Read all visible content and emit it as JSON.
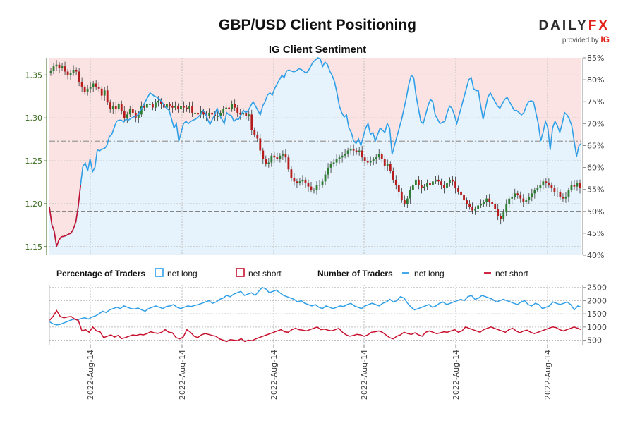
{
  "header": {
    "title": "GBP/USD Client Positioning",
    "subtitle": "IG Client Sentiment",
    "brand_part1": "DAILY",
    "brand_part2": "FX",
    "provided_by": "provided by",
    "provider": "IG"
  },
  "legend": {
    "pct_label": "Percentage of Traders",
    "pct_long": "net long",
    "pct_short": "net short",
    "num_label": "Number of Traders",
    "num_long": "net long",
    "num_short": "net short"
  },
  "colors": {
    "long": "#2f9fe8",
    "short": "#c8102e",
    "long_fill": "#e6f3fc",
    "short_fill": "#fbe3e3",
    "candle_up": "#2e7d32",
    "candle_down": "#b71c1c",
    "axis_left": "#3a6b1f"
  },
  "chart_data": [
    {
      "type": "line",
      "title": "GBP/USD Client Positioning",
      "subtitle": "IG Client Sentiment",
      "x_tick_labels": [
        "2022-Aug-14",
        "2022-Aug-14",
        "2022-Aug-14",
        "2022-Aug-14",
        "2022-Aug-14",
        "2022-Aug-14"
      ],
      "price_axis": {
        "ylim": [
          1.14,
          1.37
        ],
        "ticks": [
          1.15,
          1.2,
          1.25,
          1.3,
          1.35
        ],
        "labels": [
          "1.15",
          "1.20",
          "1.25",
          "1.30",
          "1.35"
        ]
      },
      "percent_axis": {
        "ylim": [
          40,
          85
        ],
        "ticks": [
          40,
          45,
          50,
          55,
          60,
          65,
          70,
          75,
          80,
          85
        ],
        "labels": [
          "40%",
          "45%",
          "50%",
          "55%",
          "60%",
          "65%",
          "70%",
          "75%",
          "80%",
          "85%"
        ]
      },
      "reference_lines": [
        50,
        66
      ],
      "series": [
        {
          "name": "net long %",
          "values": [
            51.0,
            47.0,
            45.5,
            42.0,
            43.5,
            44.2,
            44.3,
            44.5,
            44.8,
            45.0,
            46.0,
            47.5,
            51.0,
            56.0,
            60.3,
            61.0,
            59.2,
            62.0,
            59.0,
            60.0,
            64.0,
            63.8,
            64.2,
            64.3,
            65.0,
            67.0,
            67.5,
            69.0,
            70.5,
            70.8,
            70.8,
            70.4,
            71.0,
            70.8,
            71.2,
            71.5,
            71.7,
            72.0,
            73.0,
            74.0,
            75.0,
            76.0,
            77.0,
            76.6,
            76.2,
            76.0,
            75.5,
            75.0,
            74.0,
            73.5,
            73.0,
            71.0,
            69.0,
            70.0,
            66.0,
            68.0,
            70.0,
            70.5,
            70.0,
            70.5,
            70.8,
            71.0,
            71.5,
            72.0,
            73.0,
            72.5,
            71.0,
            69.8,
            71.0,
            72.0,
            73.5,
            72.0,
            71.0,
            70.0,
            72.5,
            72.0,
            71.8,
            70.5,
            71.0,
            71.0,
            72.0,
            73.0,
            72.5,
            73.0,
            74.0,
            75.0,
            74.0,
            73.0,
            72.0,
            74.0,
            75.0,
            76.5,
            77.0,
            76.5,
            78.0,
            79.0,
            80.0,
            81.0,
            80.5,
            82.0,
            82.2,
            82.0,
            81.8,
            82.0,
            82.5,
            82.4,
            82.0,
            81.5,
            82.0,
            83.0,
            84.0,
            84.5,
            85.0,
            84.8,
            83.0,
            84.0,
            83.5,
            82.0,
            81.0,
            79.5,
            77.0,
            74.0,
            72.5,
            71.5,
            72.0,
            69.0,
            68.0,
            66.0,
            65.5,
            66.5,
            65.0,
            67.0,
            69.0,
            70.0,
            67.5,
            68.0,
            66.0,
            67.5,
            69.0,
            68.5,
            68.0,
            70.0,
            69.0,
            63.0,
            65.0,
            67.0,
            69.0,
            71.0,
            73.5,
            76.0,
            79.0,
            81.0,
            80.5,
            76.5,
            73.5,
            70.5,
            70.0,
            72.0,
            74.0,
            75.5,
            75.0,
            72.0,
            71.0,
            70.0,
            70.3,
            70.5,
            72.5,
            74.0,
            73.5,
            72.0,
            70.0,
            72.0,
            74.0,
            76.0,
            78.0,
            80.0,
            80.5,
            78.0,
            77.5,
            77.5,
            74.0,
            71.0,
            73.5,
            76.0,
            77.0,
            76.0,
            75.0,
            74.0,
            73.5,
            74.5,
            75.5,
            76.0,
            75.0,
            74.0,
            73.0,
            73.0,
            72.5,
            72.0,
            72.5,
            74.0,
            75.0,
            75.2,
            75.0,
            72.5,
            70.0,
            66.0,
            68.0,
            70.5,
            69.0,
            64.0,
            69.0,
            70.5,
            69.5,
            68.0,
            70.0,
            72.5,
            72.0,
            71.0,
            69.5,
            66.0,
            62.5,
            65.0,
            65.5
          ]
        },
        {
          "name": "GBP/USD close",
          "values": [
            1.355,
            1.36,
            1.362,
            1.358,
            1.36,
            1.354,
            1.35,
            1.352,
            1.356,
            1.354,
            1.342,
            1.336,
            1.33,
            1.334,
            1.336,
            1.34,
            1.336,
            1.334,
            1.326,
            1.332,
            1.318,
            1.31,
            1.314,
            1.31,
            1.316,
            1.308,
            1.3,
            1.304,
            1.31,
            1.306,
            1.3,
            1.304,
            1.314,
            1.312,
            1.316,
            1.316,
            1.312,
            1.318,
            1.32,
            1.316,
            1.312,
            1.316,
            1.314,
            1.312,
            1.314,
            1.31,
            1.314,
            1.312,
            1.31,
            1.314,
            1.306,
            1.306,
            1.304,
            1.308,
            1.304,
            1.302,
            1.306,
            1.304,
            1.302,
            1.302,
            1.306,
            1.31,
            1.312,
            1.31,
            1.316,
            1.312,
            1.306,
            1.304,
            1.306,
            1.302,
            1.304,
            1.286,
            1.28,
            1.276,
            1.262,
            1.252,
            1.246,
            1.248,
            1.256,
            1.254,
            1.252,
            1.256,
            1.258,
            1.254,
            1.24,
            1.23,
            1.226,
            1.224,
            1.226,
            1.228,
            1.224,
            1.22,
            1.216,
            1.216,
            1.222,
            1.222,
            1.226,
            1.234,
            1.242,
            1.246,
            1.248,
            1.252,
            1.254,
            1.256,
            1.258,
            1.262,
            1.264,
            1.262,
            1.26,
            1.262,
            1.254,
            1.25,
            1.248,
            1.25,
            1.252,
            1.254,
            1.258,
            1.252,
            1.244,
            1.246,
            1.238,
            1.228,
            1.222,
            1.214,
            1.204,
            1.2,
            1.206,
            1.216,
            1.222,
            1.228,
            1.222,
            1.218,
            1.22,
            1.224,
            1.222,
            1.226,
            1.228,
            1.226,
            1.222,
            1.218,
            1.224,
            1.228,
            1.226,
            1.218,
            1.214,
            1.21,
            1.204,
            1.2,
            1.196,
            1.192,
            1.194,
            1.198,
            1.2,
            1.202,
            1.206,
            1.202,
            1.2,
            1.194,
            1.186,
            1.182,
            1.19,
            1.2,
            1.206,
            1.208,
            1.212,
            1.21,
            1.206,
            1.202,
            1.204,
            1.208,
            1.212,
            1.216,
            1.218,
            1.222,
            1.226,
            1.224,
            1.222,
            1.218,
            1.214,
            1.214,
            1.208,
            1.206,
            1.208,
            1.216,
            1.222,
            1.22,
            1.224,
            1.218
          ]
        }
      ]
    },
    {
      "type": "line",
      "title": "Number of Traders",
      "ylim": [
        300,
        2600
      ],
      "ticks": [
        500,
        1000,
        1500,
        2000,
        2500
      ],
      "tick_labels": [
        "500",
        "1000",
        "1500",
        "2000",
        "2500"
      ],
      "series": [
        {
          "name": "net long",
          "values": [
            1200,
            1120,
            1080,
            1100,
            1150,
            1200,
            1260,
            1300,
            1280,
            1320,
            1350,
            1300,
            1380,
            1420,
            1500,
            1600,
            1550,
            1650,
            1700,
            1750,
            1700,
            1800,
            1750,
            1700,
            1680,
            1720,
            1650,
            1600,
            1700,
            1750,
            1800,
            1750,
            1700,
            1780,
            1800,
            1850,
            1750,
            1700,
            1750,
            1800,
            1780,
            1820,
            1850,
            1900,
            1950,
            2000,
            1900,
            1950,
            2050,
            2100,
            2200,
            2150,
            2250,
            2300,
            2350,
            2200,
            2250,
            2300,
            2200,
            2350,
            2500,
            2450,
            2300,
            2350,
            2400,
            2300,
            2200,
            2150,
            2100,
            2050,
            1950,
            2000,
            1900,
            1850,
            1800,
            1850,
            1750,
            1700,
            1800,
            1750,
            1700,
            1750,
            1800,
            1780,
            1850,
            1900,
            1800,
            1750,
            1700,
            1800,
            1850,
            1900,
            1850,
            1800,
            1900,
            1950,
            2050,
            1950,
            2000,
            2150,
            2100,
            1900,
            1750,
            1650,
            1700,
            1750,
            1800,
            1850,
            1750,
            1800,
            1900,
            1950,
            1850,
            1900,
            1950,
            2000,
            2050,
            2000,
            2150,
            2200,
            2050,
            2100,
            2200,
            2150,
            2100,
            2050,
            1950,
            2000,
            2050,
            2000,
            1950,
            1900,
            1850,
            1950,
            2000,
            1850,
            1800,
            1900,
            1850,
            1700,
            1750,
            1800,
            1950,
            1900,
            1850,
            1900,
            1950,
            1850,
            1650,
            1800,
            1750
          ]
        },
        {
          "name": "net short",
          "values": [
            1250,
            1400,
            1620,
            1400,
            1350,
            1380,
            1400,
            1300,
            1250,
            850,
            900,
            800,
            1000,
            850,
            820,
            600,
            650,
            700,
            620,
            680,
            560,
            600,
            650,
            700,
            680,
            720,
            700,
            750,
            820,
            780,
            760,
            800,
            900,
            800,
            780,
            600,
            550,
            620,
            900,
            800,
            650,
            600,
            700,
            750,
            720,
            680,
            650,
            550,
            500,
            450,
            520,
            500,
            480,
            560,
            450,
            500,
            480,
            550,
            600,
            650,
            700,
            750,
            800,
            850,
            900,
            820,
            800,
            900,
            950,
            900,
            880,
            850,
            900,
            950,
            1000,
            900,
            920,
            880,
            850,
            900,
            950,
            800,
            700,
            650,
            680,
            720,
            700,
            650,
            700,
            800,
            820,
            850,
            800,
            700,
            600,
            550,
            650,
            700,
            800,
            750,
            720,
            780,
            700,
            650,
            800,
            850,
            800,
            750,
            780,
            820,
            800,
            850,
            900,
            800,
            850,
            1000,
            950,
            900,
            850,
            800,
            900,
            950,
            1000,
            950,
            900,
            850,
            800,
            900,
            950,
            850,
            780,
            850,
            880,
            800,
            750,
            800,
            850,
            900,
            950,
            1000,
            980,
            900,
            850,
            900,
            950,
            1000,
            950,
            900
          ]
        }
      ]
    }
  ]
}
